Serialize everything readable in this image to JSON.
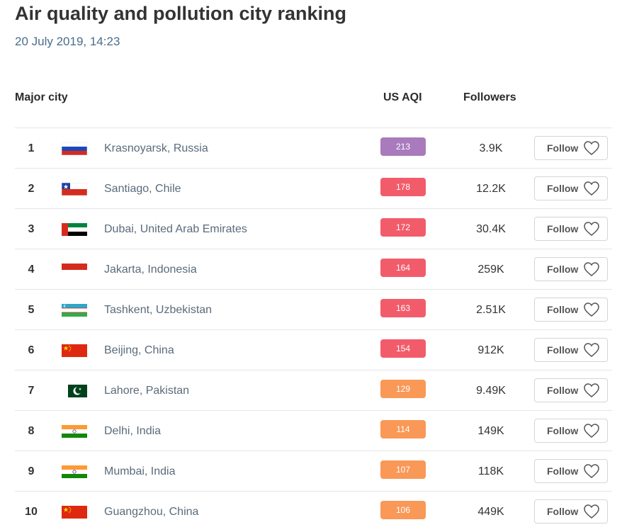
{
  "header": {
    "title": "Air quality and pollution city ranking",
    "date": "20 July 2019, 14:23"
  },
  "columns": {
    "city": "Major city",
    "aqi": "US AQI",
    "followers": "Followers"
  },
  "follow_label": "Follow",
  "colors": {
    "very_unhealthy": "#a97abc",
    "unhealthy": "#f25c6a",
    "sensitive": "#f99857"
  },
  "rows": [
    {
      "rank": "1",
      "city": "Krasnoyarsk, Russia",
      "aqi": "213",
      "level": "very_unhealthy",
      "followers": "3.9K",
      "flag": "russia-flag-icon"
    },
    {
      "rank": "2",
      "city": "Santiago, Chile",
      "aqi": "178",
      "level": "unhealthy",
      "followers": "12.2K",
      "flag": "chile-flag-icon"
    },
    {
      "rank": "3",
      "city": "Dubai, United Arab Emirates",
      "aqi": "172",
      "level": "unhealthy",
      "followers": "30.4K",
      "flag": "uae-flag-icon"
    },
    {
      "rank": "4",
      "city": "Jakarta, Indonesia",
      "aqi": "164",
      "level": "unhealthy",
      "followers": "259K",
      "flag": "indonesia-flag-icon"
    },
    {
      "rank": "5",
      "city": "Tashkent, Uzbekistan",
      "aqi": "163",
      "level": "unhealthy",
      "followers": "2.51K",
      "flag": "uzbekistan-flag-icon"
    },
    {
      "rank": "6",
      "city": "Beijing, China",
      "aqi": "154",
      "level": "unhealthy",
      "followers": "912K",
      "flag": "china-flag-icon"
    },
    {
      "rank": "7",
      "city": "Lahore, Pakistan",
      "aqi": "129",
      "level": "sensitive",
      "followers": "9.49K",
      "flag": "pakistan-flag-icon"
    },
    {
      "rank": "8",
      "city": "Delhi, India",
      "aqi": "114",
      "level": "sensitive",
      "followers": "149K",
      "flag": "india-flag-icon"
    },
    {
      "rank": "9",
      "city": "Mumbai, India",
      "aqi": "107",
      "level": "sensitive",
      "followers": "118K",
      "flag": "india-flag-icon"
    },
    {
      "rank": "10",
      "city": "Guangzhou, China",
      "aqi": "106",
      "level": "sensitive",
      "followers": "449K",
      "flag": "china-flag-icon"
    }
  ]
}
